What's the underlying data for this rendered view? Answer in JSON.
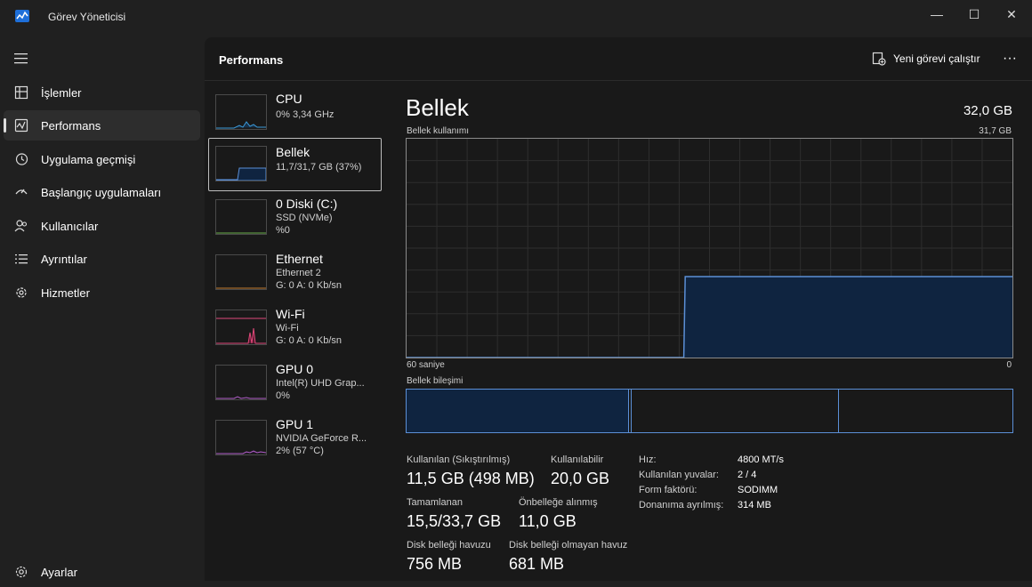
{
  "window": {
    "title": "Görev Yöneticisi",
    "controls": [
      "minimize-icon",
      "maximize-icon",
      "close-icon"
    ]
  },
  "nav": {
    "menu_icon": "hamburger-icon",
    "items": [
      {
        "label": "İşlemler",
        "icon": "processes-icon"
      },
      {
        "label": "Performans",
        "icon": "performance-icon",
        "active": true
      },
      {
        "label": "Uygulama geçmişi",
        "icon": "history-icon"
      },
      {
        "label": "Başlangıç uygulamaları",
        "icon": "startup-icon"
      },
      {
        "label": "Kullanıcılar",
        "icon": "users-icon"
      },
      {
        "label": "Ayrıntılar",
        "icon": "details-icon"
      },
      {
        "label": "Hizmetler",
        "icon": "services-icon"
      }
    ],
    "settings": {
      "label": "Ayarlar",
      "icon": "settings-icon"
    }
  },
  "header": {
    "title": "Performans",
    "run_task_label": "Yeni görevi çalıştır",
    "more_label": "···"
  },
  "devices": [
    {
      "name": "CPU",
      "lines": [
        "0% 3,34 GHz"
      ]
    },
    {
      "name": "Bellek",
      "lines": [
        "11,7/31,7 GB (37%)"
      ],
      "selected": true
    },
    {
      "name": "0 Diski (C:)",
      "lines": [
        "SSD (NVMe)",
        "%0"
      ]
    },
    {
      "name": "Ethernet",
      "lines": [
        "Ethernet 2",
        "G: 0 A: 0 Kb/sn"
      ]
    },
    {
      "name": "Wi-Fi",
      "lines": [
        "Wi-Fi",
        "G: 0 A: 0 Kb/sn"
      ]
    },
    {
      "name": "GPU 0",
      "lines": [
        "Intel(R) UHD Grap...",
        "0%"
      ]
    },
    {
      "name": "GPU 1",
      "lines": [
        "NVIDIA GeForce R...",
        "2% (57 °C)"
      ]
    }
  ],
  "detail": {
    "title": "Bellek",
    "total": "32,0 GB",
    "usage_label": "Bellek kullanımı",
    "usage_max": "31,7 GB",
    "x_left_label": "60 saniye",
    "x_right_label": "0",
    "composition_label": "Bellek bileşimi",
    "usage_history_fraction": [
      0,
      0,
      0,
      0,
      0,
      0,
      0,
      0,
      0,
      0,
      0,
      0,
      0,
      0,
      0,
      0,
      0,
      0,
      0,
      0,
      0,
      0,
      0,
      0,
      0,
      0,
      0,
      0,
      0.37,
      0.37,
      0.37,
      0.37,
      0.37,
      0.37,
      0.37,
      0.37,
      0.37,
      0.37,
      0.37,
      0.37,
      0.37,
      0.37,
      0.37,
      0.37,
      0.37,
      0.37,
      0.37,
      0.37,
      0.37,
      0.37,
      0.37,
      0.37,
      0.37,
      0.37,
      0.37,
      0.37,
      0.37,
      0.37,
      0.37,
      0.37
    ],
    "stats": {
      "in_use_label": "Kullanılan (Sıkıştırılmış)",
      "in_use_value": "11,5 GB (498 MB)",
      "available_label": "Kullanılabilir",
      "available_value": "20,0 GB",
      "committed_label": "Tamamlanan",
      "committed_value": "15,5/33,7 GB",
      "cached_label": "Önbelleğe alınmış",
      "cached_value": "11,0 GB",
      "paged_label": "Disk belleği havuzu",
      "paged_value": "756 MB",
      "nonpaged_label": "Disk belleği olmayan havuz",
      "nonpaged_value": "681 MB"
    },
    "specs": [
      {
        "label": "Hız:",
        "value": "4800 MT/s"
      },
      {
        "label": "Kullanılan yuvalar:",
        "value": "2 / 4"
      },
      {
        "label": "Form faktörü:",
        "value": "SODIMM"
      },
      {
        "label": "Donanıma ayrılmış:",
        "value": "314 MB"
      }
    ]
  },
  "colors": {
    "memory_line": "#5b8fd6",
    "memory_fill": "#0f2440",
    "grid": "#2e2e2e",
    "wifi": "#e0497a",
    "cpu": "#3b9ad9",
    "gpu": "#b15ec9"
  }
}
